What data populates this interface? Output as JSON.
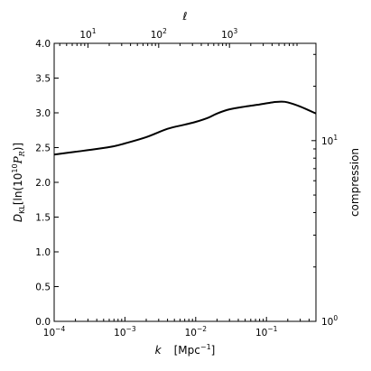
{
  "chart_data": {
    "type": "line",
    "xscale": "log",
    "xlim": [
      0.0001,
      0.5
    ],
    "ylim": [
      0.0,
      4.0
    ],
    "xlabel": {
      "sym": "k",
      "unit_main": "[Mpc",
      "unit_sup": "−1",
      "unit_end": "]"
    },
    "ylabel": {
      "main": "D",
      "sub": "KL",
      "bracket": "[ln(10",
      "sup": "10",
      "p": "P",
      "psub": "R",
      "close": ")]"
    },
    "top_axis": {
      "label": "ℓ",
      "ticks": [
        {
          "value": 0.0003,
          "base": "10",
          "exp": "1"
        },
        {
          "value": 0.003,
          "base": "10",
          "exp": "2"
        },
        {
          "value": 0.03,
          "base": "10",
          "exp": "3"
        }
      ]
    },
    "right_axis": {
      "label": "compression",
      "scale": "log",
      "ticks": [
        {
          "value": 0.0,
          "base": "10",
          "exp": "0"
        },
        {
          "value": 2.6,
          "base": "10",
          "exp": "1"
        }
      ]
    },
    "yticks": [
      "0.0",
      "0.5",
      "1.0",
      "1.5",
      "2.0",
      "2.5",
      "3.0",
      "3.5",
      "4.0"
    ],
    "xticks": [
      {
        "value": 0.0001,
        "base": "10",
        "exp": "−4"
      },
      {
        "value": 0.001,
        "base": "10",
        "exp": "−3"
      },
      {
        "value": 0.01,
        "base": "10",
        "exp": "−2"
      },
      {
        "value": 0.1,
        "base": "10",
        "exp": "−1"
      }
    ],
    "series": [
      {
        "color": "#000000",
        "points": [
          [
            0.0001,
            2.4
          ],
          [
            0.0002,
            2.44
          ],
          [
            0.0004,
            2.48
          ],
          [
            0.0007,
            2.52
          ],
          [
            0.001,
            2.56
          ],
          [
            0.002,
            2.65
          ],
          [
            0.004,
            2.77
          ],
          [
            0.007,
            2.83
          ],
          [
            0.01,
            2.87
          ],
          [
            0.015,
            2.93
          ],
          [
            0.02,
            2.99
          ],
          [
            0.03,
            3.05
          ],
          [
            0.05,
            3.09
          ],
          [
            0.08,
            3.12
          ],
          [
            0.12,
            3.15
          ],
          [
            0.16,
            3.16
          ],
          [
            0.2,
            3.15
          ],
          [
            0.3,
            3.09
          ],
          [
            0.5,
            2.99
          ]
        ]
      }
    ]
  }
}
